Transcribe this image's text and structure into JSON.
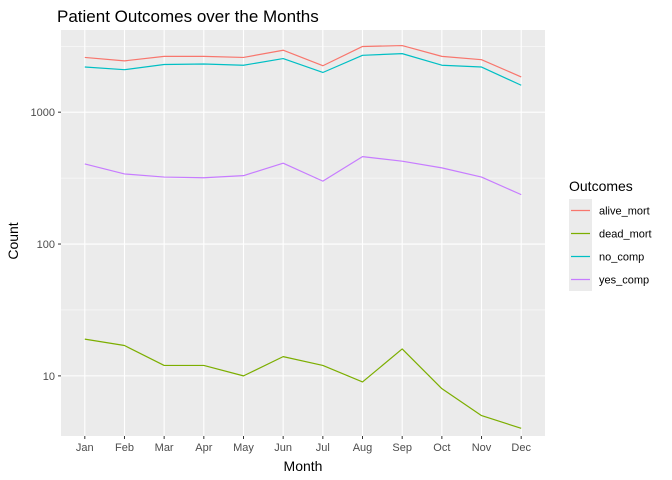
{
  "chart_data": {
    "type": "line",
    "title": "Patient Outcomes over the Months",
    "xlabel": "Month",
    "ylabel": "Count",
    "y_scale": "log10",
    "ylim": [
      3.5,
      4200
    ],
    "y_ticks": [
      10,
      100,
      1000
    ],
    "y_tick_labels": [
      "10",
      "100",
      "1000"
    ],
    "categories": [
      "Jan",
      "Feb",
      "Mar",
      "Apr",
      "May",
      "Jun",
      "Jul",
      "Aug",
      "Sep",
      "Oct",
      "Nov",
      "Dec"
    ],
    "grid": true,
    "legend": {
      "title": "Outcomes",
      "position": "right"
    },
    "series": [
      {
        "name": "alive_mort",
        "color": "#F8766D",
        "values": [
          2600,
          2450,
          2650,
          2650,
          2600,
          2950,
          2250,
          3150,
          3200,
          2650,
          2500,
          1850
        ]
      },
      {
        "name": "dead_mort",
        "color": "#7CAE00",
        "values": [
          19,
          17,
          12,
          12,
          10,
          14,
          12,
          9,
          16,
          8,
          5,
          4
        ]
      },
      {
        "name": "no_comp",
        "color": "#00BFC4",
        "values": [
          2200,
          2100,
          2300,
          2320,
          2270,
          2550,
          2000,
          2700,
          2780,
          2270,
          2200,
          1600
        ]
      },
      {
        "name": "yes_comp",
        "color": "#C77CFF",
        "values": [
          405,
          340,
          322,
          318,
          330,
          410,
          300,
          460,
          425,
          378,
          322,
          237
        ]
      }
    ]
  }
}
